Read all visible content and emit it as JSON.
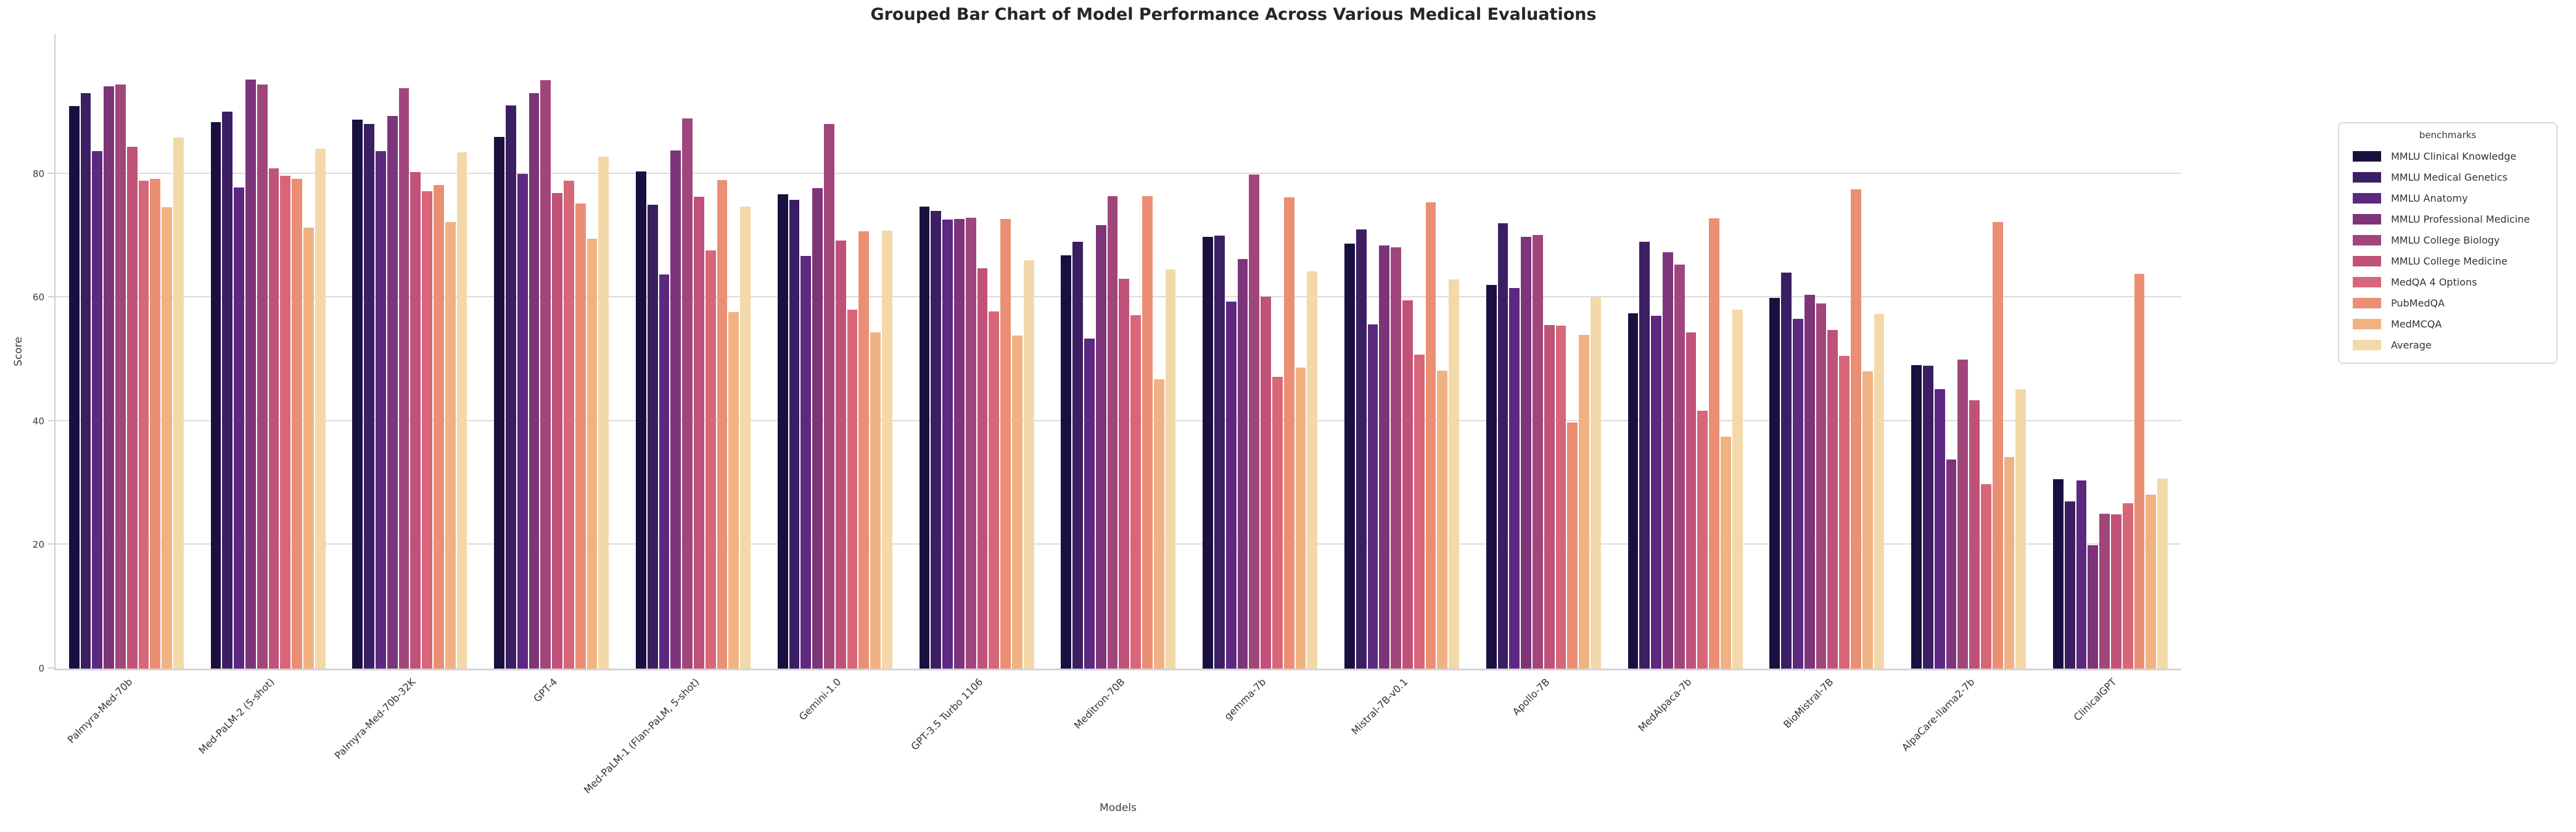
{
  "figure": {
    "title": "Grouped Bar Chart of Model Performance Across Various Medical Evaluations",
    "xlabel": "Models",
    "ylabel": "Score"
  },
  "legend": {
    "title": "benchmarks"
  },
  "chart_data": {
    "type": "bar",
    "title": "Grouped Bar Chart of Model Performance Across Various Medical Evaluations",
    "xlabel": "Models",
    "ylabel": "Score",
    "ylim": [
      0,
      102.6
    ],
    "yticks": [
      0,
      20,
      40,
      60,
      80
    ],
    "grid": "horizontal",
    "legend_title": "benchmarks",
    "legend_position": "outside-right",
    "categories": [
      "Palmyra-Med-70b",
      "Med-PaLM-2 (5-shot)",
      "Palmyra-Med-70b-32K",
      "GPT-4",
      "Med-PaLM-1 (Flan-PaLM, 5-shot)",
      "Gemini-1.0",
      "GPT-3.5 Turbo 1106",
      "Meditron-70B",
      "gemma-7b",
      "Mistral-7B-v0.1",
      "Apollo-7B",
      "MedAlpaca-7b",
      "BioMistral-7B",
      "AlpaCare-llama2-7b",
      "ClinicalGPT"
    ],
    "series": [
      {
        "name": "MMLU Clinical Knowledge",
        "color": "#1a1040",
        "values": [
          90.9,
          88.3,
          88.7,
          86.0,
          80.4,
          76.7,
          74.7,
          66.8,
          69.8,
          68.7,
          62.0,
          57.4,
          59.9,
          49.1,
          30.6
        ]
      },
      {
        "name": "MMLU Medical Genetics",
        "color": "#3c1f62",
        "values": [
          93.0,
          90.0,
          88.0,
          91.0,
          75.0,
          75.8,
          74.0,
          69.0,
          70.0,
          71.0,
          72.0,
          69.0,
          64.0,
          49.0,
          27.0
        ]
      },
      {
        "name": "MMLU Anatomy",
        "color": "#5d2880",
        "values": [
          83.7,
          77.8,
          83.7,
          80.0,
          63.7,
          66.7,
          72.6,
          53.3,
          59.3,
          55.6,
          61.5,
          57.0,
          56.5,
          45.2,
          30.4
        ]
      },
      {
        "name": "MMLU Professional Medicine",
        "color": "#7e3479",
        "values": [
          94.1,
          95.2,
          89.3,
          93.0,
          83.8,
          77.7,
          72.7,
          71.7,
          66.2,
          68.4,
          69.8,
          67.3,
          60.4,
          33.8,
          19.9
        ]
      },
      {
        "name": "MMLU College Biology",
        "color": "#a1467b",
        "values": [
          94.4,
          94.4,
          93.8,
          95.1,
          88.9,
          88.0,
          72.9,
          76.4,
          79.9,
          68.1,
          70.1,
          65.3,
          59.0,
          50.0,
          25.0
        ]
      },
      {
        "name": "MMLU College Medicine",
        "color": "#c05279",
        "values": [
          84.4,
          80.9,
          80.3,
          76.9,
          76.3,
          69.2,
          64.7,
          63.0,
          60.1,
          59.5,
          55.5,
          54.3,
          54.7,
          43.4,
          24.9
        ]
      },
      {
        "name": "MedQA 4 Options",
        "color": "#d76778",
        "values": [
          78.9,
          79.7,
          77.2,
          78.9,
          67.6,
          58.0,
          57.7,
          57.1,
          47.2,
          50.8,
          55.4,
          41.7,
          50.6,
          29.8,
          26.7
        ]
      },
      {
        "name": "PubMedQA",
        "color": "#ea8f74",
        "values": [
          79.2,
          79.2,
          78.2,
          75.2,
          79.0,
          70.7,
          72.7,
          76.4,
          76.2,
          75.4,
          39.8,
          72.8,
          77.5,
          72.2,
          63.8
        ]
      },
      {
        "name": "MedMCQA",
        "color": "#f1b283",
        "values": [
          74.6,
          71.3,
          72.2,
          69.5,
          57.6,
          54.3,
          53.8,
          46.8,
          48.7,
          48.2,
          53.9,
          37.5,
          48.1,
          34.2,
          28.1
        ]
      },
      {
        "name": "Average",
        "color": "#f3d9a9",
        "values": [
          85.9,
          84.1,
          83.5,
          82.8,
          74.7,
          70.8,
          66.0,
          64.5,
          64.2,
          62.9,
          60.0,
          58.0,
          57.3,
          45.2,
          30.7
        ]
      }
    ]
  }
}
